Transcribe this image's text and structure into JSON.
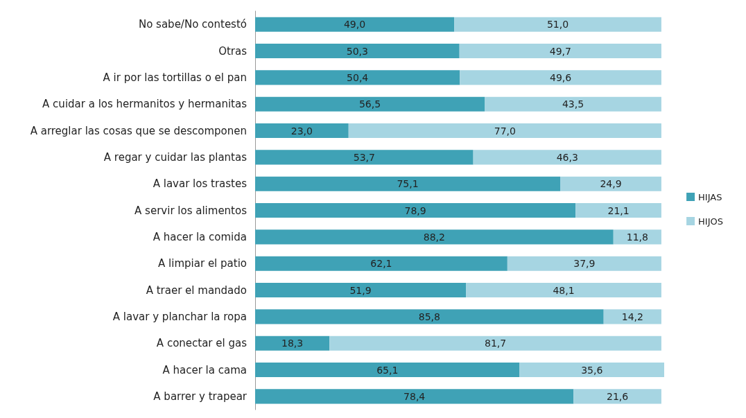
{
  "chart_data": {
    "type": "bar",
    "orientation": "horizontal",
    "stacked": true,
    "legend": "right",
    "categories": [
      "No sabe/No contestó",
      "Otras",
      "A ir por las tortillas o el pan",
      "A cuidar a los hermanitos y hermanitas",
      "A arreglar las cosas que se descomponen",
      "A regar y cuidar las plantas",
      "A lavar los trastes",
      "A servir los alimentos",
      "A hacer la comida",
      "A limpiar el patio",
      "A traer el mandado",
      "A lavar y planchar la ropa",
      "A conectar el gas",
      "A hacer la cama",
      "A barrer y trapear"
    ],
    "series": [
      {
        "name": "HIJAS",
        "color": "#3fa2b6",
        "values": [
          49.0,
          50.3,
          50.4,
          56.5,
          23.0,
          53.7,
          75.1,
          78.9,
          88.2,
          62.1,
          51.9,
          85.8,
          18.3,
          65.1,
          78.4
        ],
        "value_labels": [
          "49,0",
          "50,3",
          "50,4",
          "56,5",
          "23,0",
          "53,7",
          "75,1",
          "78,9",
          "88,2",
          "62,1",
          "51,9",
          "85,8",
          "18,3",
          "65,1",
          "78,4"
        ]
      },
      {
        "name": "HIJOS",
        "color": "#a6d5e2",
        "values": [
          51.0,
          49.7,
          49.6,
          43.5,
          77.0,
          46.3,
          24.9,
          21.1,
          11.8,
          37.9,
          48.1,
          14.2,
          81.7,
          35.6,
          21.6
        ],
        "value_labels": [
          "51,0",
          "49,7",
          "49,6",
          "43,5",
          "77,0",
          "46,3",
          "24,9",
          "21,1",
          "11,8",
          "37,9",
          "48,1",
          "14,2",
          "81,7",
          "35,6",
          "21,6"
        ]
      }
    ]
  }
}
